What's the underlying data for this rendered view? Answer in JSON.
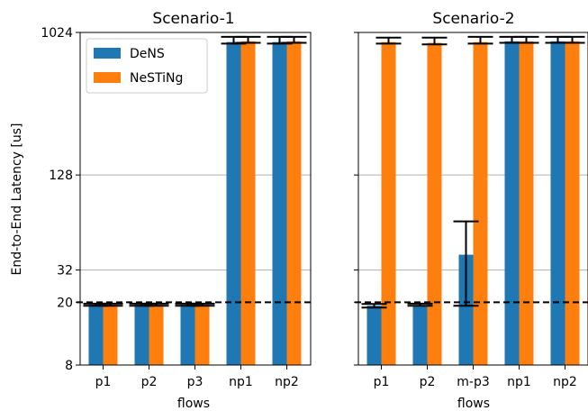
{
  "chart_data": [
    {
      "type": "bar",
      "title": "Scenario-1",
      "xlabel": "flows",
      "ylabel": "End-to-End Latency [us]",
      "yscale": "log2",
      "ylim": [
        8,
        1024
      ],
      "yticks": [
        8,
        20,
        32,
        128,
        1024
      ],
      "ytick_labels": [
        "8",
        "20",
        "32",
        "128",
        "1024"
      ],
      "grid_y": [
        32,
        128
      ],
      "reference_line": {
        "y": 20,
        "style": "dashed",
        "color": "#000000"
      },
      "categories": [
        "p1",
        "p2",
        "p3",
        "np1",
        "np2"
      ],
      "series": [
        {
          "name": "DeNS",
          "color": "#1f77b4",
          "values": [
            19.3,
            19.3,
            19.3,
            890,
            890
          ],
          "error_low": [
            19.0,
            19.0,
            19.0,
            870,
            870
          ],
          "error_high": [
            19.6,
            19.6,
            19.6,
            960,
            960
          ]
        },
        {
          "name": "NeSTiNg",
          "color": "#ff7f0e",
          "values": [
            19.3,
            19.3,
            19.3,
            900,
            900
          ],
          "error_low": [
            19.0,
            19.0,
            19.0,
            880,
            880
          ],
          "error_high": [
            19.6,
            19.6,
            19.6,
            960,
            960
          ]
        }
      ],
      "legend": {
        "position": "top-left",
        "entries": [
          "DeNS",
          "NeSTiNg"
        ]
      }
    },
    {
      "type": "bar",
      "title": "Scenario-2",
      "xlabel": "flows",
      "yscale": "log2",
      "ylim": [
        8,
        1024
      ],
      "yticks": [
        8,
        20,
        32,
        128,
        1024
      ],
      "grid_y": [
        32,
        128
      ],
      "reference_line": {
        "y": 20,
        "style": "dashed",
        "color": "#000000"
      },
      "categories": [
        "p1",
        "p2",
        "m-p3",
        "np1",
        "np2"
      ],
      "series": [
        {
          "name": "DeNS",
          "color": "#1f77b4",
          "values": [
            19.0,
            19.2,
            40,
            900,
            900
          ],
          "error_low": [
            18.5,
            19.0,
            19.0,
            880,
            880
          ],
          "error_high": [
            19.5,
            19.6,
            65,
            960,
            960
          ]
        },
        {
          "name": "NeSTiNg",
          "color": "#ff7f0e",
          "values": [
            890,
            880,
            890,
            900,
            900
          ],
          "error_low": [
            870,
            860,
            870,
            880,
            880
          ],
          "error_high": [
            950,
            950,
            960,
            960,
            960
          ]
        }
      ]
    }
  ]
}
